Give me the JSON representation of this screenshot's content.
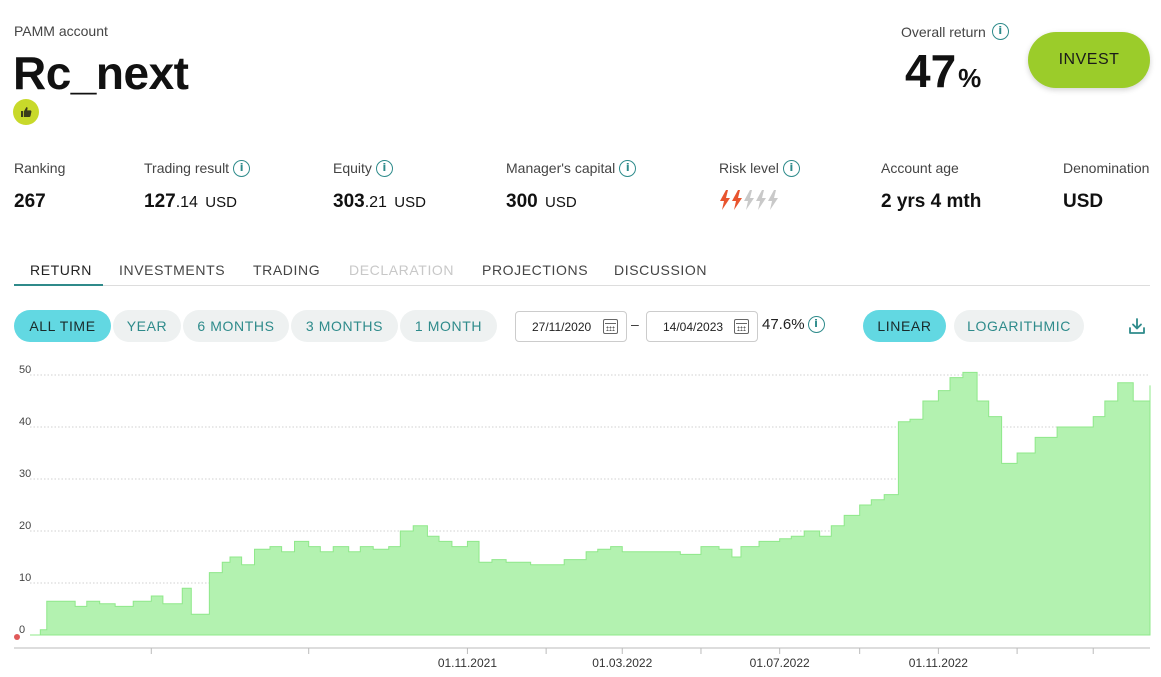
{
  "account": {
    "type_label": "PAMM account",
    "name": "Rc_next",
    "badge_icon": "thumbs-up-icon"
  },
  "overall_return": {
    "label": "Overall return",
    "value": "47",
    "unit": "%"
  },
  "invest_button": "INVEST",
  "stats": {
    "ranking": {
      "label": "Ranking",
      "value": "267"
    },
    "trading_result": {
      "label": "Trading result",
      "int": "127",
      "dec": ".14",
      "currency": "USD"
    },
    "equity": {
      "label": "Equity",
      "int": "303",
      "dec": ".21",
      "currency": "USD"
    },
    "managers_capital": {
      "label": "Manager's capital",
      "value": "300",
      "currency": "USD"
    },
    "risk_level": {
      "label": "Risk level",
      "level": 2,
      "max": 5
    },
    "account_age": {
      "label": "Account age",
      "value": "2 yrs 4 mth"
    },
    "denomination": {
      "label": "Denomination",
      "value": "USD"
    }
  },
  "tabs": [
    {
      "label": "RETURN",
      "state": "active"
    },
    {
      "label": "INVESTMENTS",
      "state": "normal"
    },
    {
      "label": "TRADING",
      "state": "normal"
    },
    {
      "label": "DECLARATION",
      "state": "disabled"
    },
    {
      "label": "PROJECTIONS",
      "state": "normal"
    },
    {
      "label": "DISCUSSION",
      "state": "normal"
    }
  ],
  "periods": [
    {
      "label": "ALL TIME",
      "active": true
    },
    {
      "label": "YEAR",
      "active": false
    },
    {
      "label": "6 MONTHS",
      "active": false
    },
    {
      "label": "3 MONTHS",
      "active": false
    },
    {
      "label": "1 MONTH",
      "active": false
    }
  ],
  "date_range": {
    "from": "27/11/2020",
    "to": "14/04/2023",
    "separator": "–",
    "period_return": "47.6%"
  },
  "scales": [
    {
      "label": "LINEAR",
      "active": true
    },
    {
      "label": "LOGARITHMIC",
      "active": false
    }
  ],
  "colors": {
    "accent": "#62d8e2",
    "invest": "#9bcc2a",
    "area_fill": "#b3f2b0",
    "area_line": "#8fe88a",
    "risk_on": "#e8542e",
    "risk_off": "#c9c9c9"
  },
  "chart_data": {
    "type": "area",
    "title": "",
    "xlabel": "",
    "ylabel": "",
    "ylim": [
      0,
      50
    ],
    "yticks": [
      0,
      10,
      20,
      30,
      40,
      50
    ],
    "xlim": [
      "2020-11-27",
      "2023-04-14"
    ],
    "xtick_labels": [
      "01.11.2021",
      "01.03.2022",
      "01.07.2022",
      "01.11.2022"
    ],
    "xtick_dates": [
      "2021-11-01",
      "2022-03-01",
      "2022-07-01",
      "2022-11-01"
    ],
    "minor_tick_dates": [
      "2021-03-01",
      "2021-07-01",
      "2022-01-01",
      "2022-05-01",
      "2022-09-01",
      "2023-01-01",
      "2023-03-01"
    ],
    "grid": true,
    "series": [
      {
        "x": [
          "2020-11-27",
          "2020-12-05",
          "2020-12-10",
          "2021-01-01",
          "2021-01-10",
          "2021-01-20",
          "2021-02-01",
          "2021-02-15",
          "2021-03-01",
          "2021-03-10",
          "2021-03-25",
          "2021-04-01",
          "2021-04-15",
          "2021-04-25",
          "2021-05-01",
          "2021-05-10",
          "2021-05-20",
          "2021-06-01",
          "2021-06-10",
          "2021-06-20",
          "2021-07-01",
          "2021-07-10",
          "2021-07-20",
          "2021-08-01",
          "2021-08-10",
          "2021-08-20",
          "2021-09-01",
          "2021-09-10",
          "2021-09-20",
          "2021-10-01",
          "2021-10-10",
          "2021-10-20",
          "2021-11-01",
          "2021-11-10",
          "2021-11-20",
          "2021-12-01",
          "2021-12-10",
          "2021-12-20",
          "2022-01-01",
          "2022-01-15",
          "2022-02-01",
          "2022-02-10",
          "2022-02-20",
          "2022-03-01",
          "2022-03-15",
          "2022-04-01",
          "2022-04-15",
          "2022-05-01",
          "2022-05-15",
          "2022-05-25",
          "2022-06-01",
          "2022-06-15",
          "2022-07-01",
          "2022-07-10",
          "2022-07-20",
          "2022-08-01",
          "2022-08-10",
          "2022-08-20",
          "2022-09-01",
          "2022-09-10",
          "2022-09-20",
          "2022-10-01",
          "2022-10-10",
          "2022-10-20",
          "2022-11-01",
          "2022-11-10",
          "2022-11-20",
          "2022-12-01",
          "2022-12-10",
          "2022-12-20",
          "2023-01-01",
          "2023-01-15",
          "2023-02-01",
          "2023-02-15",
          "2023-03-01",
          "2023-03-10",
          "2023-03-20",
          "2023-04-01",
          "2023-04-14"
        ],
        "y": [
          0,
          1,
          6.5,
          5.5,
          6.5,
          6,
          5.5,
          6.5,
          7.5,
          6,
          9,
          4,
          12,
          14,
          15,
          13.5,
          16.5,
          17,
          16,
          18,
          17,
          16,
          17,
          16,
          17,
          16.5,
          17,
          20,
          21,
          19,
          18,
          17,
          18,
          14,
          14.5,
          14,
          14,
          13.5,
          13.5,
          14.5,
          16,
          16.5,
          17,
          16,
          16,
          16,
          15.5,
          17,
          16.5,
          15,
          17,
          18,
          18.5,
          19,
          20,
          19,
          21,
          23,
          25,
          26,
          27,
          41,
          41.5,
          45,
          47,
          49.5,
          50.5,
          45,
          42,
          33,
          35,
          38,
          40,
          40,
          42,
          45,
          48.5,
          45,
          48
        ]
      }
    ]
  }
}
